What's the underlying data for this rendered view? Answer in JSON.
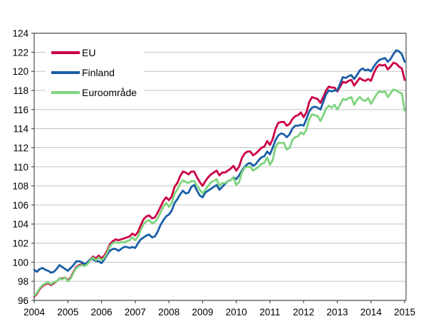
{
  "chart_data": {
    "type": "line",
    "title": "",
    "x_tick_labels": [
      "2004",
      "2005",
      "2006",
      "2007",
      "2008",
      "2009",
      "2010",
      "2011",
      "2012",
      "2013",
      "2014",
      "2015"
    ],
    "x_monthly_from": "2004-01",
    "x_monthly_to": "2015-01",
    "y_ticks": [
      96,
      98,
      100,
      102,
      104,
      106,
      108,
      110,
      112,
      114,
      116,
      118,
      120,
      122,
      124
    ],
    "ylim": [
      96,
      124
    ],
    "grid": "horizontal",
    "legend_position": "top-left",
    "frame_color": "#4d4d4d",
    "grid_color": "#c2c2c2",
    "axis_text_color": "#000000",
    "series": [
      {
        "name": "EU",
        "color": "#cb0044",
        "values": [
          96.4,
          96.7,
          97.2,
          97.5,
          97.7,
          97.8,
          97.6,
          97.8,
          98.0,
          98.3,
          98.3,
          98.4,
          98.1,
          98.4,
          99.0,
          99.5,
          99.7,
          99.8,
          99.7,
          99.9,
          100.3,
          100.6,
          100.4,
          100.7,
          100.4,
          100.7,
          101.2,
          101.9,
          102.2,
          102.4,
          102.3,
          102.4,
          102.5,
          102.6,
          102.7,
          103.0,
          102.8,
          103.2,
          103.9,
          104.5,
          104.8,
          104.9,
          104.6,
          104.7,
          105.2,
          105.8,
          106.4,
          106.8,
          106.5,
          106.9,
          107.9,
          108.3,
          109.0,
          109.5,
          109.4,
          109.2,
          109.5,
          109.5,
          108.9,
          108.4,
          108.0,
          108.5,
          108.9,
          109.2,
          109.4,
          109.6,
          109.1,
          109.4,
          109.4,
          109.6,
          109.8,
          110.1,
          109.6,
          110.0,
          110.9,
          111.4,
          111.6,
          111.6,
          111.2,
          111.4,
          111.7,
          112.0,
          112.1,
          112.7,
          112.3,
          112.9,
          114.0,
          114.6,
          114.7,
          114.7,
          114.3,
          114.5,
          115.0,
          115.3,
          115.4,
          115.7,
          115.2,
          115.7,
          116.8,
          117.3,
          117.2,
          117.1,
          116.7,
          117.3,
          118.0,
          118.4,
          118.3,
          118.3,
          117.9,
          118.4,
          118.9,
          118.8,
          119.0,
          119.1,
          118.5,
          118.9,
          119.3,
          119.1,
          119.0,
          119.2,
          119.0,
          119.8,
          120.4,
          120.7,
          120.6,
          120.7,
          120.2,
          120.5,
          120.9,
          120.8,
          120.5,
          120.3,
          119.1
        ]
      },
      {
        "name": "Finland",
        "color": "#1a5ea6",
        "values": [
          99.2,
          99.0,
          99.3,
          99.4,
          99.2,
          99.1,
          98.9,
          99.0,
          99.3,
          99.7,
          99.5,
          99.3,
          99.1,
          99.4,
          99.7,
          100.1,
          100.1,
          100.0,
          99.8,
          100.0,
          100.3,
          100.3,
          100.1,
          100.1,
          99.9,
          100.3,
          100.8,
          101.2,
          101.4,
          101.4,
          101.2,
          101.4,
          101.6,
          101.6,
          101.5,
          101.6,
          101.5,
          102.0,
          102.4,
          102.6,
          102.8,
          102.9,
          102.6,
          102.7,
          103.2,
          103.9,
          104.4,
          104.8,
          105.0,
          105.4,
          106.2,
          106.6,
          107.1,
          107.5,
          107.2,
          107.3,
          107.9,
          108.1,
          107.5,
          107.0,
          106.8,
          107.3,
          107.5,
          107.7,
          107.9,
          108.1,
          107.6,
          107.9,
          108.2,
          108.5,
          108.6,
          108.9,
          108.7,
          109.1,
          109.6,
          110.0,
          110.3,
          110.4,
          110.1,
          110.3,
          110.7,
          111.0,
          111.1,
          111.6,
          111.3,
          112.0,
          112.8,
          113.3,
          113.5,
          113.4,
          113.1,
          113.4,
          114.0,
          114.3,
          114.3,
          114.4,
          114.3,
          115.0,
          115.8,
          116.2,
          116.3,
          116.2,
          116.0,
          116.8,
          117.6,
          118.0,
          117.9,
          118.0,
          118.0,
          118.7,
          119.4,
          119.3,
          119.5,
          119.6,
          119.2,
          119.6,
          120.1,
          120.3,
          120.1,
          120.2,
          120.0,
          120.5,
          120.9,
          121.2,
          121.3,
          121.4,
          121.0,
          121.3,
          121.8,
          122.2,
          122.1,
          121.8,
          121.0
        ]
      },
      {
        "name": "Euroområde",
        "color": "#7ed47e",
        "values": [
          96.5,
          96.8,
          97.3,
          97.6,
          97.8,
          97.9,
          97.7,
          97.9,
          98.0,
          98.3,
          98.2,
          98.4,
          98.0,
          98.3,
          98.9,
          99.4,
          99.6,
          99.7,
          99.6,
          99.8,
          100.2,
          100.5,
          100.2,
          100.5,
          100.2,
          100.5,
          101.0,
          101.7,
          102.0,
          102.1,
          102.0,
          102.1,
          102.1,
          102.2,
          102.3,
          102.6,
          102.3,
          102.7,
          103.4,
          104.0,
          104.3,
          104.4,
          104.1,
          104.2,
          104.6,
          105.2,
          105.8,
          106.2,
          105.8,
          106.2,
          107.2,
          107.6,
          108.2,
          108.6,
          108.4,
          108.3,
          108.5,
          108.5,
          108.0,
          107.6,
          107.2,
          107.6,
          108.0,
          108.4,
          108.5,
          108.7,
          108.0,
          108.3,
          108.3,
          108.5,
          108.6,
          108.9,
          108.1,
          108.4,
          109.4,
          109.9,
          110.0,
          110.0,
          109.6,
          109.8,
          110.0,
          110.3,
          110.4,
          111.0,
          110.2,
          110.7,
          112.1,
          112.5,
          112.5,
          112.5,
          111.8,
          112.0,
          112.8,
          113.1,
          113.2,
          113.6,
          113.4,
          113.9,
          115.0,
          115.5,
          115.4,
          115.3,
          114.8,
          115.4,
          116.1,
          116.4,
          116.2,
          116.5,
          116.0,
          116.5,
          117.1,
          117.0,
          117.2,
          117.3,
          116.5,
          117.0,
          117.3,
          117.0,
          116.9,
          117.2,
          116.6,
          117.1,
          117.6,
          117.9,
          117.8,
          117.9,
          117.3,
          117.7,
          118.1,
          118.0,
          117.8,
          117.7,
          115.9
        ]
      }
    ]
  }
}
